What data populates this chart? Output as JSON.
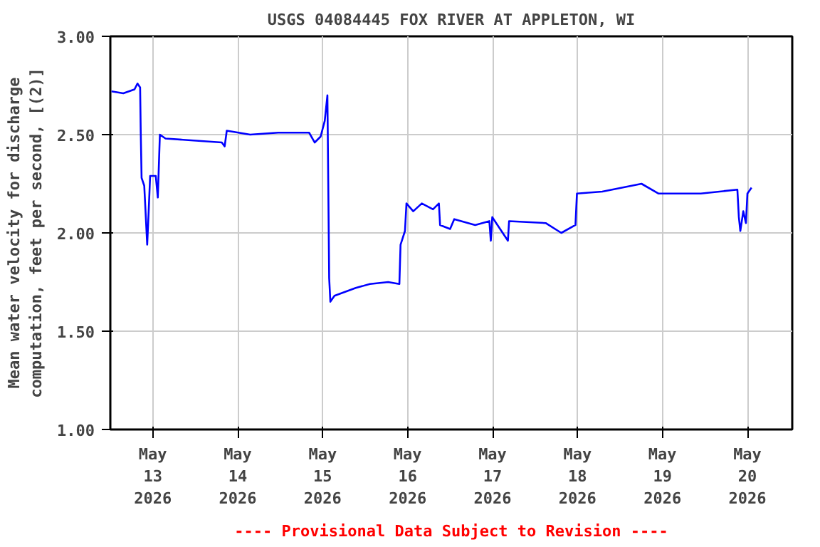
{
  "chart_data": {
    "type": "line",
    "title": "USGS 04084445 FOX RIVER AT APPLETON, WI",
    "ylabel": "Mean water velocity for discharge\ncomputation, feet per second, [(2)]",
    "annotations": [
      "---- Provisional Data Subject to Revision ----"
    ],
    "x": [
      "2026-05-12T12:20",
      "2026-05-12T15:40",
      "2026-05-12T18:50",
      "2026-05-12T19:40",
      "2026-05-12T20:25",
      "2026-05-12T20:35",
      "2026-05-12T20:50",
      "2026-05-12T21:35",
      "2026-05-12T22:25",
      "2026-05-12T22:50",
      "2026-05-12T23:15",
      "2026-05-13T00:50",
      "2026-05-13T01:25",
      "2026-05-13T02:00",
      "2026-05-13T03:35",
      "2026-05-13T11:30",
      "2026-05-13T19:30",
      "2026-05-13T20:18",
      "2026-05-13T20:54",
      "2026-05-14T03:30",
      "2026-05-14T11:25",
      "2026-05-14T20:10",
      "2026-05-14T21:45",
      "2026-05-14T23:25",
      "2026-05-15T00:35",
      "2026-05-15T01:20",
      "2026-05-15T01:50",
      "2026-05-15T02:10",
      "2026-05-15T03:20",
      "2026-05-15T09:20",
      "2026-05-15T13:20",
      "2026-05-15T18:30",
      "2026-05-15T21:40",
      "2026-05-15T22:00",
      "2026-05-15T23:15",
      "2026-05-15T23:40",
      "2026-05-16T01:35",
      "2026-05-16T04:00",
      "2026-05-16T07:10",
      "2026-05-16T08:50",
      "2026-05-16T09:10",
      "2026-05-16T12:00",
      "2026-05-16T13:10",
      "2026-05-16T19:05",
      "2026-05-16T23:05",
      "2026-05-16T23:30",
      "2026-05-16T23:55",
      "2026-05-17T04:20",
      "2026-05-17T04:40",
      "2026-05-17T15:00",
      "2026-05-17T19:25",
      "2026-05-17T23:25",
      "2026-05-17T23:50",
      "2026-05-18T07:00",
      "2026-05-18T18:05",
      "2026-05-18T22:55",
      "2026-05-19T10:50",
      "2026-05-19T21:10",
      "2026-05-19T21:35",
      "2026-05-19T22:00",
      "2026-05-19T22:50",
      "2026-05-19T23:35",
      "2026-05-20T00:00",
      "2026-05-20T01:10"
    ],
    "series": [
      {
        "color": "#0000ff",
        "values": [
          2.72,
          2.71,
          2.73,
          2.76,
          2.74,
          2.52,
          2.28,
          2.24,
          1.94,
          2.11,
          2.29,
          2.29,
          2.18,
          2.5,
          2.48,
          2.47,
          2.46,
          2.44,
          2.52,
          2.5,
          2.51,
          2.51,
          2.46,
          2.49,
          2.57,
          2.7,
          1.77,
          1.65,
          1.68,
          1.72,
          1.74,
          1.75,
          1.74,
          1.94,
          2.01,
          2.15,
          2.11,
          2.15,
          2.12,
          2.15,
          2.04,
          2.02,
          2.07,
          2.04,
          2.06,
          1.96,
          2.08,
          1.96,
          2.06,
          2.05,
          2.0,
          2.04,
          2.2,
          2.21,
          2.25,
          2.2,
          2.2,
          2.22,
          2.08,
          2.01,
          2.11,
          2.05,
          2.2,
          2.23
        ]
      }
    ],
    "xlim": [
      "2026-05-12T12:00",
      "2026-05-20T12:40"
    ],
    "xticks": [
      {
        "value": "2026-05-13",
        "label": "May\n13\n2026"
      },
      {
        "value": "2026-05-14",
        "label": "May\n14\n2026"
      },
      {
        "value": "2026-05-15",
        "label": "May\n15\n2026"
      },
      {
        "value": "2026-05-16",
        "label": "May\n16\n2026"
      },
      {
        "value": "2026-05-17",
        "label": "May\n17\n2026"
      },
      {
        "value": "2026-05-18",
        "label": "May\n18\n2026"
      },
      {
        "value": "2026-05-19",
        "label": "May\n19\n2026"
      },
      {
        "value": "2026-05-20",
        "label": "May\n20\n2026"
      }
    ],
    "ylim": [
      1.0,
      3.0
    ],
    "yticks": [
      {
        "value": 1.0,
        "label": "1.00"
      },
      {
        "value": 1.5,
        "label": "1.50"
      },
      {
        "value": 2.0,
        "label": "2.00"
      },
      {
        "value": 2.5,
        "label": "2.50"
      },
      {
        "value": 3.0,
        "label": "3.00"
      }
    ],
    "grid": true,
    "line_style": "solid",
    "marker": "none"
  }
}
